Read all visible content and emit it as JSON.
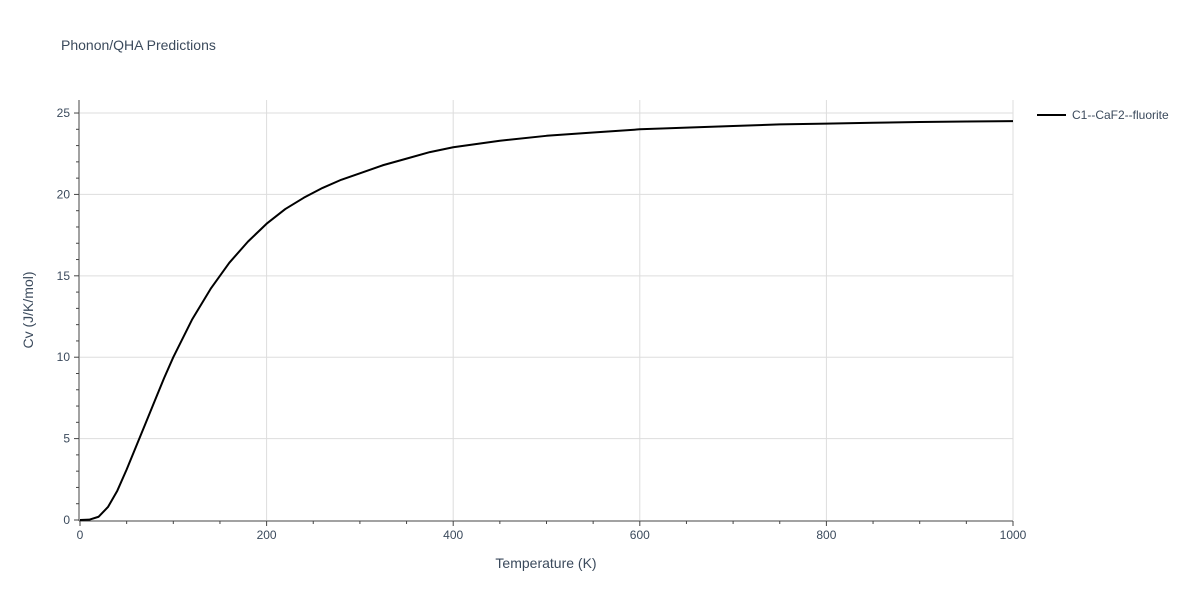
{
  "chart_data": {
    "type": "line",
    "title": "Phonon/QHA Predictions",
    "xlabel": "Temperature (K)",
    "ylabel": "Cv (J/K/mol)",
    "xlim": [
      0,
      1000
    ],
    "ylim": [
      0,
      25.8
    ],
    "xticks": [
      0,
      200,
      400,
      600,
      800,
      1000
    ],
    "yticks": [
      0,
      5,
      10,
      15,
      20,
      25
    ],
    "grid": true,
    "legend_position": "top-right",
    "series": [
      {
        "name": "C1--CaF2--fluorite",
        "color": "#000000",
        "x": [
          0,
          10,
          20,
          30,
          40,
          50,
          60,
          70,
          80,
          90,
          100,
          120,
          140,
          160,
          180,
          200,
          220,
          240,
          260,
          280,
          300,
          325,
          350,
          375,
          400,
          450,
          500,
          550,
          600,
          650,
          700,
          750,
          800,
          850,
          900,
          950,
          1000
        ],
        "y": [
          0,
          0.02,
          0.2,
          0.8,
          1.8,
          3.1,
          4.5,
          5.9,
          7.3,
          8.7,
          10.0,
          12.3,
          14.2,
          15.8,
          17.1,
          18.2,
          19.1,
          19.8,
          20.4,
          20.9,
          21.3,
          21.8,
          22.2,
          22.6,
          22.9,
          23.3,
          23.6,
          23.8,
          24.0,
          24.1,
          24.2,
          24.3,
          24.35,
          24.4,
          24.45,
          24.48,
          24.5
        ]
      }
    ]
  }
}
